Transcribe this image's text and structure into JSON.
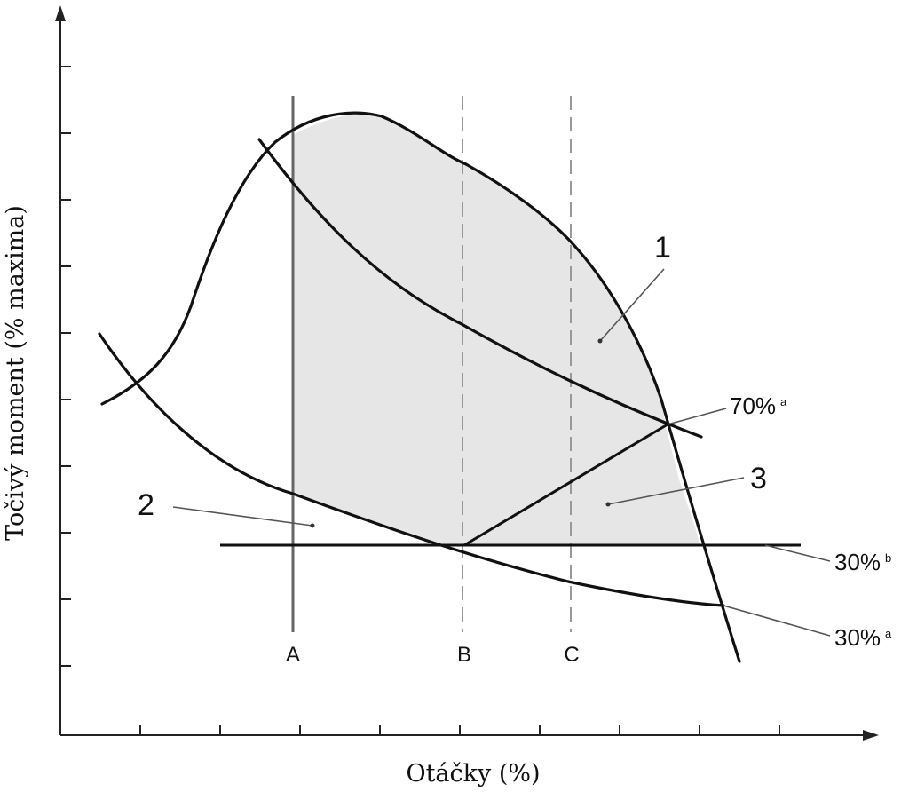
{
  "axes": {
    "x_title": "Otáčky (%)",
    "y_title": "Točivý moment (% maxima)"
  },
  "regions": {
    "one": "1",
    "two": "2",
    "three": "3"
  },
  "speed_lines": {
    "a": "A",
    "b": "B",
    "c": "C"
  },
  "curve_labels": {
    "seventy_a": {
      "text": "70%",
      "sup": "a"
    },
    "thirty_b": {
      "text": "30%",
      "sup": "b"
    },
    "thirty_a": {
      "text": "30%",
      "sup": "a"
    }
  },
  "colors": {
    "region_fill": "#e6e6e6",
    "curve": "#111111",
    "dashed_line": "#999999"
  }
}
